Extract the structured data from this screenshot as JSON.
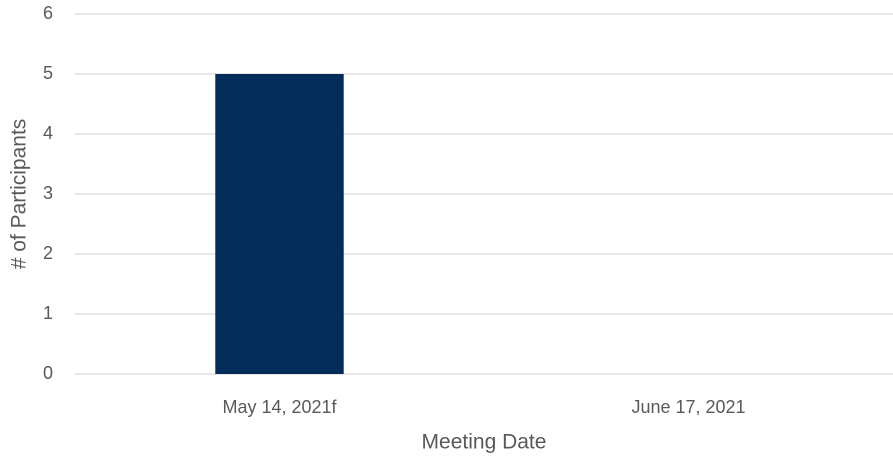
{
  "chart_data": {
    "type": "bar",
    "x_label": "Meeting Date",
    "y_label": "# of Participants",
    "categories": [
      "May 14, 2021f",
      "June 17, 2021"
    ],
    "values": [
      5,
      0
    ],
    "color": "#052d5b",
    "ylim": [
      0,
      6
    ],
    "yticks": [
      0,
      1,
      2,
      3,
      4,
      5,
      6
    ],
    "grid": true
  }
}
